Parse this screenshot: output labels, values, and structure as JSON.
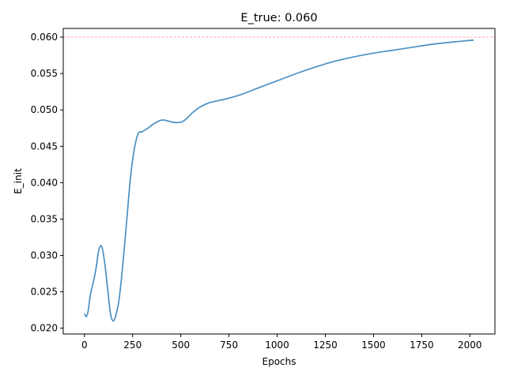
{
  "chart_data": {
    "type": "line",
    "title": "E_true: 0.060",
    "xlabel": "Epochs",
    "ylabel": "E_init",
    "xlim": [
      -110,
      2130
    ],
    "ylim": [
      0.0192,
      0.0612
    ],
    "xticks": [
      0,
      250,
      500,
      750,
      1000,
      1250,
      1500,
      1750,
      2000
    ],
    "yticks": [
      0.02,
      0.025,
      0.03,
      0.035,
      0.04,
      0.045,
      0.05,
      0.055,
      0.06
    ],
    "ytick_labels": [
      "0.020",
      "0.025",
      "0.030",
      "0.035",
      "0.040",
      "0.045",
      "0.050",
      "0.055",
      "0.060"
    ],
    "grid": false,
    "reference_line": {
      "y": 0.06,
      "color": "#ff9999",
      "style": "dashed"
    },
    "series": [
      {
        "color": "#4a90c2",
        "x": [
          0,
          10,
          20,
          30,
          45,
          60,
          75,
          90,
          105,
          120,
          135,
          150,
          165,
          180,
          200,
          220,
          240,
          260,
          280,
          300,
          330,
          360,
          400,
          430,
          460,
          500,
          530,
          560,
          600,
          650,
          700,
          800,
          900,
          1000,
          1100,
          1200,
          1300,
          1400,
          1500,
          1600,
          1700,
          1800,
          1900,
          2020
        ],
        "y": [
          0.022,
          0.0216,
          0.0225,
          0.0245,
          0.0262,
          0.0282,
          0.0308,
          0.0312,
          0.029,
          0.0255,
          0.022,
          0.021,
          0.022,
          0.024,
          0.029,
          0.035,
          0.041,
          0.0448,
          0.0468,
          0.047,
          0.0475,
          0.0481,
          0.0486,
          0.0485,
          0.0483,
          0.0483,
          0.0488,
          0.0496,
          0.0504,
          0.051,
          0.0513,
          0.052,
          0.053,
          0.054,
          0.055,
          0.0559,
          0.0567,
          0.0573,
          0.0578,
          0.0582,
          0.0586,
          0.059,
          0.0593,
          0.0596
        ]
      }
    ]
  }
}
